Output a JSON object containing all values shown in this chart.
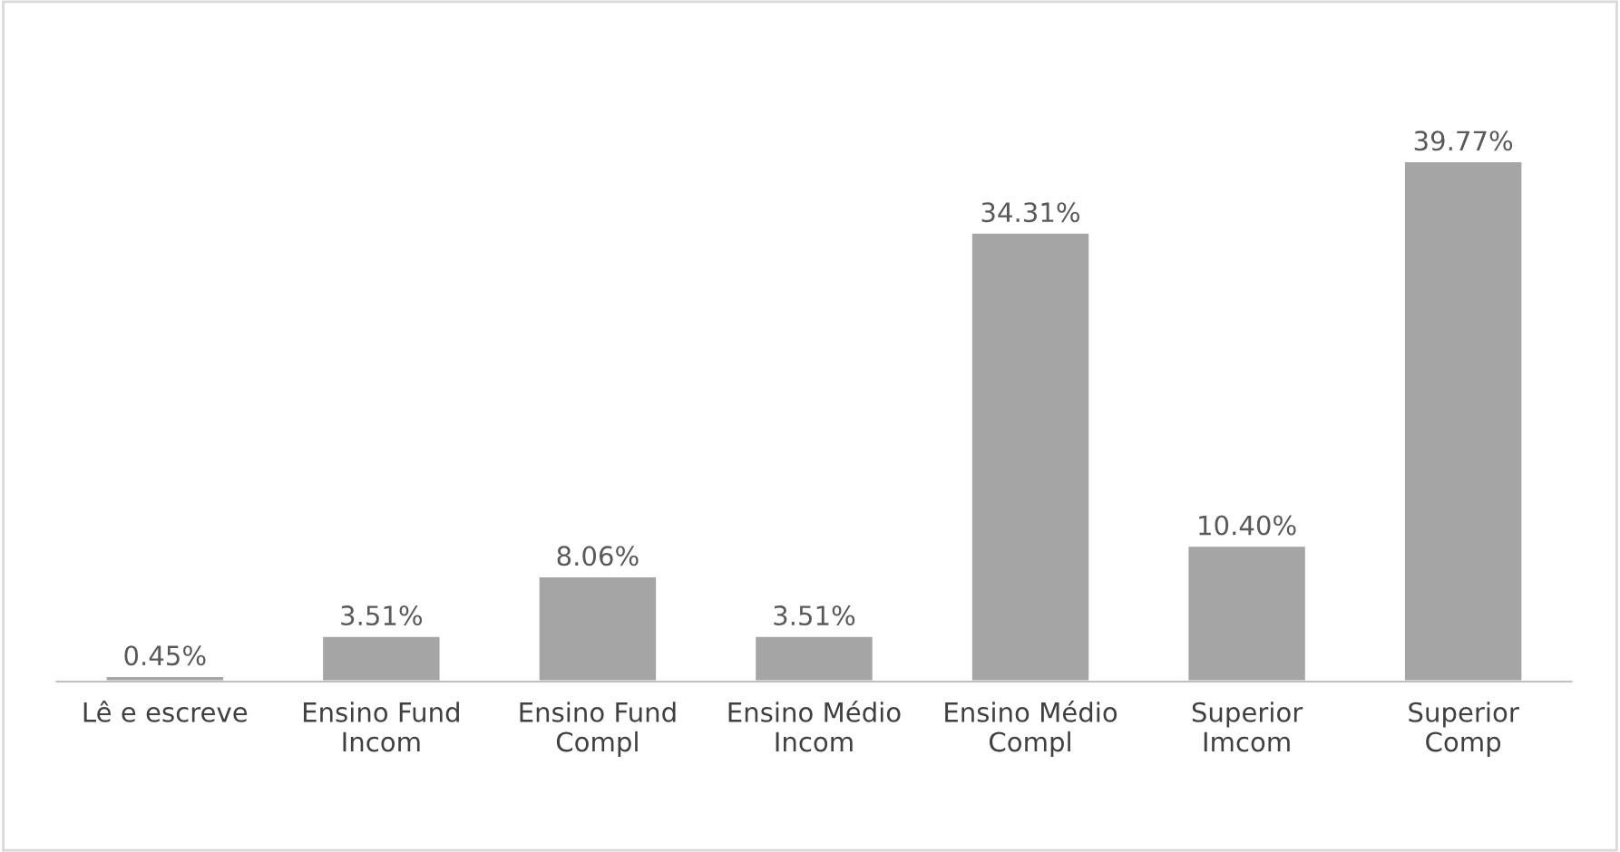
{
  "chart_data": {
    "type": "bar",
    "categories": [
      "Lê e escreve",
      "Ensino Fund\nIncom",
      "Ensino Fund\nCompl",
      "Ensino Médio\nIncom",
      "Ensino Médio\nCompl",
      "Superior\nImcom",
      "Superior\nComp"
    ],
    "values": [
      0.45,
      3.51,
      8.06,
      3.51,
      34.31,
      10.4,
      39.77
    ],
    "value_labels": [
      "0.45%",
      "3.51%",
      "8.06%",
      "3.51%",
      "34.31%",
      "10.40%",
      "39.77%"
    ],
    "color": "#a5a5a5",
    "grid": false
  }
}
